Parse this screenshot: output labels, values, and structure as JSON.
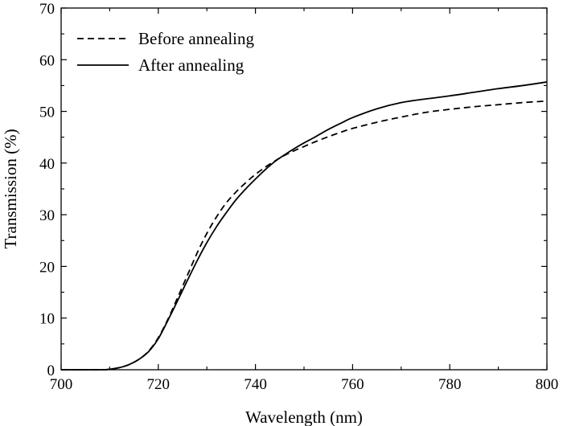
{
  "chart_data": {
    "type": "line",
    "xlabel": "Wavelength (nm)",
    "ylabel": "Transmission (%)",
    "xlim": [
      700,
      800
    ],
    "ylim": [
      0,
      70
    ],
    "xticks": [
      700,
      720,
      740,
      760,
      780,
      800
    ],
    "yticks": [
      0,
      10,
      20,
      30,
      40,
      50,
      60,
      70
    ],
    "xtick_labels": [
      "700",
      "720",
      "740",
      "760",
      "780",
      "800"
    ],
    "ytick_labels": [
      "0",
      "10",
      "20",
      "30",
      "40",
      "50",
      "60",
      "70"
    ],
    "grid": false,
    "legend_position": "top-left",
    "series": [
      {
        "name": "Before annealing",
        "style": "dashed",
        "color": "#000000",
        "x": [
          700,
          708,
          710,
          712,
          714,
          716,
          718,
          720,
          722,
          724,
          726,
          728,
          730,
          732,
          734,
          736,
          738,
          740,
          742,
          744,
          746,
          748,
          750,
          752,
          755,
          758,
          760,
          765,
          770,
          775,
          780,
          785,
          790,
          795,
          800
        ],
        "y": [
          0,
          0,
          0.1,
          0.4,
          1.0,
          2.0,
          3.6,
          6.2,
          9.8,
          14.0,
          18.3,
          22.6,
          26.4,
          29.6,
          32.3,
          34.4,
          36.2,
          37.8,
          39.2,
          40.4,
          41.5,
          42.4,
          43.2,
          44.0,
          45.1,
          46.1,
          46.7,
          47.9,
          48.9,
          49.8,
          50.4,
          50.9,
          51.3,
          51.7,
          52.0
        ]
      },
      {
        "name": "After annealing",
        "style": "solid",
        "color": "#000000",
        "x": [
          700,
          708,
          710,
          712,
          714,
          716,
          718,
          720,
          722,
          724,
          726,
          728,
          730,
          732,
          734,
          736,
          738,
          740,
          742,
          744,
          746,
          748,
          750,
          752,
          755,
          758,
          760,
          765,
          770,
          775,
          780,
          785,
          790,
          795,
          800
        ],
        "y": [
          0,
          0,
          0.1,
          0.4,
          1.0,
          2.0,
          3.5,
          6.0,
          9.6,
          13.4,
          17.3,
          21.1,
          24.6,
          27.7,
          30.4,
          32.9,
          35.0,
          36.9,
          38.7,
          40.3,
          41.6,
          42.8,
          43.9,
          44.9,
          46.5,
          47.9,
          48.8,
          50.5,
          51.7,
          52.4,
          53.0,
          53.7,
          54.4,
          55.0,
          55.7
        ]
      }
    ]
  }
}
